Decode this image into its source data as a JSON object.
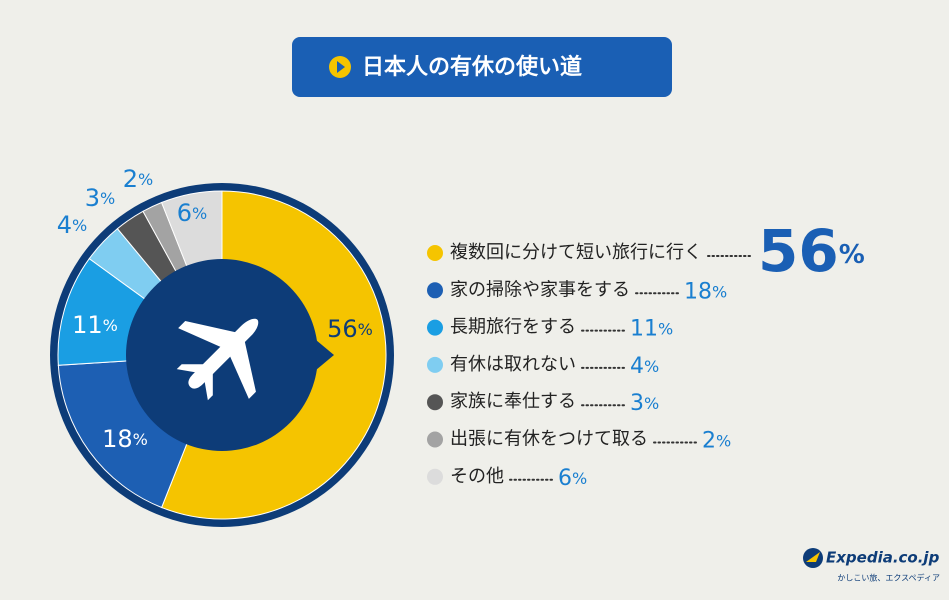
{
  "chart_data": {
    "type": "pie",
    "title": "日本人の有休の使い道",
    "categories": [
      "複数回に分けて短い旅行に行く",
      "家の掃除や家事をする",
      "長期旅行をする",
      "有休は取れない",
      "家族に奉仕する",
      "出張に有休をつけて取る",
      "その他"
    ],
    "values": [
      56,
      18,
      11,
      4,
      3,
      2,
      6
    ],
    "value_labels": [
      "56%",
      "18%",
      "11%",
      "4%",
      "3%",
      "2%",
      "6%"
    ],
    "colors": [
      "#f5c400",
      "#1d5fb3",
      "#1a9ee3",
      "#7fcdf1",
      "#555555",
      "#a3a3a3",
      "#dcdcdc"
    ]
  },
  "brand": {
    "name": "Expedia.co.jp",
    "tagline": "かしこい旅、エクスペディア"
  }
}
